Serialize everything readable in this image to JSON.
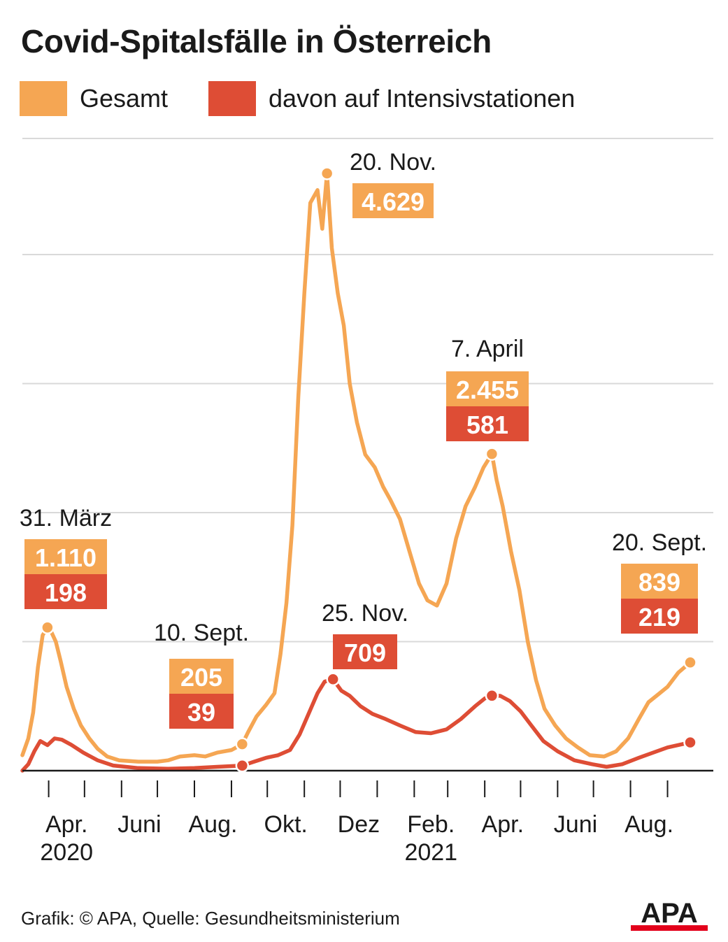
{
  "title": "Covid-Spitalsfälle in Österreich",
  "legend": [
    {
      "label": "Gesamt",
      "color": "#F5A653"
    },
    {
      "label": "davon auf Intensivstationen",
      "color": "#DE4D35"
    }
  ],
  "colors": {
    "total": "#F5A653",
    "icu": "#DE4D35",
    "grid": "#d9d9d9",
    "axis": "#1a1a1a"
  },
  "footer": "Grafik: © APA, Quelle: Gesundheitsministerium",
  "logo_text": "APA",
  "chart_data": {
    "type": "line",
    "title": "Covid-Spitalsfälle in Österreich",
    "xlabel": "",
    "ylabel": "",
    "x_axis_type": "date",
    "xlim": [
      "2020-03-10",
      "2021-09-20"
    ],
    "ylim": [
      0,
      4900
    ],
    "y_gridlines": [
      1000,
      2000,
      3000,
      4000,
      4900
    ],
    "y_tick_labels_shown": false,
    "grid": true,
    "legend_position": "top-left",
    "x_month_ticks": [
      "2020-04-01",
      "2020-05-01",
      "2020-06-01",
      "2020-07-01",
      "2020-08-01",
      "2020-09-01",
      "2020-10-01",
      "2020-11-01",
      "2020-12-01",
      "2021-01-01",
      "2021-02-01",
      "2021-03-01",
      "2021-04-01",
      "2021-05-01",
      "2021-06-01",
      "2021-07-01",
      "2021-08-01",
      "2021-09-01"
    ],
    "x_tick_labels": [
      {
        "label": "Apr.",
        "year": "2020",
        "month_start": "2020-04-01"
      },
      {
        "label": "Juni",
        "year": "",
        "month_start": "2020-06-01"
      },
      {
        "label": "Aug.",
        "year": "",
        "month_start": "2020-08-01"
      },
      {
        "label": "Okt.",
        "year": "",
        "month_start": "2020-10-01"
      },
      {
        "label": "Dez",
        "year": "",
        "month_start": "2020-12-01"
      },
      {
        "label": "Feb.",
        "year": "2021",
        "month_start": "2021-02-01"
      },
      {
        "label": "Apr.",
        "year": "",
        "month_start": "2021-04-01"
      },
      {
        "label": "Juni",
        "year": "",
        "month_start": "2021-06-01"
      },
      {
        "label": "Aug.",
        "year": "",
        "month_start": "2021-08-01"
      }
    ],
    "series": [
      {
        "name": "Gesamt",
        "color": "#F5A653",
        "points": [
          [
            "2020-03-10",
            120
          ],
          [
            "2020-03-15",
            250
          ],
          [
            "2020-03-19",
            450
          ],
          [
            "2020-03-23",
            800
          ],
          [
            "2020-03-27",
            1050
          ],
          [
            "2020-03-31",
            1110
          ],
          [
            "2020-04-03",
            1080
          ],
          [
            "2020-04-07",
            1000
          ],
          [
            "2020-04-11",
            850
          ],
          [
            "2020-04-16",
            650
          ],
          [
            "2020-04-22",
            480
          ],
          [
            "2020-04-28",
            350
          ],
          [
            "2020-05-05",
            250
          ],
          [
            "2020-05-12",
            170
          ],
          [
            "2020-05-20",
            110
          ],
          [
            "2020-05-30",
            80
          ],
          [
            "2020-06-15",
            70
          ],
          [
            "2020-07-01",
            70
          ],
          [
            "2020-07-10",
            80
          ],
          [
            "2020-07-20",
            110
          ],
          [
            "2020-08-01",
            120
          ],
          [
            "2020-08-10",
            110
          ],
          [
            "2020-08-20",
            140
          ],
          [
            "2020-09-01",
            160
          ],
          [
            "2020-09-10",
            205
          ],
          [
            "2020-09-15",
            300
          ],
          [
            "2020-09-22",
            420
          ],
          [
            "2020-09-30",
            510
          ],
          [
            "2020-10-07",
            600
          ],
          [
            "2020-10-12",
            900
          ],
          [
            "2020-10-17",
            1300
          ],
          [
            "2020-10-22",
            1900
          ],
          [
            "2020-10-27",
            2900
          ],
          [
            "2020-11-01",
            3700
          ],
          [
            "2020-11-06",
            4400
          ],
          [
            "2020-11-12",
            4500
          ],
          [
            "2020-11-16",
            4200
          ],
          [
            "2020-11-20",
            4629
          ],
          [
            "2020-11-24",
            4050
          ],
          [
            "2020-11-29",
            3700
          ],
          [
            "2020-12-04",
            3450
          ],
          [
            "2020-12-09",
            3000
          ],
          [
            "2020-12-15",
            2700
          ],
          [
            "2020-12-22",
            2450
          ],
          [
            "2020-12-30",
            2350
          ],
          [
            "2021-01-06",
            2200
          ],
          [
            "2021-01-12",
            2100
          ],
          [
            "2021-01-20",
            1950
          ],
          [
            "2021-01-28",
            1700
          ],
          [
            "2021-02-05",
            1450
          ],
          [
            "2021-02-12",
            1320
          ],
          [
            "2021-02-20",
            1280
          ],
          [
            "2021-02-28",
            1450
          ],
          [
            "2021-03-08",
            1800
          ],
          [
            "2021-03-16",
            2050
          ],
          [
            "2021-03-24",
            2200
          ],
          [
            "2021-03-31",
            2350
          ],
          [
            "2021-04-07",
            2455
          ],
          [
            "2021-04-11",
            2250
          ],
          [
            "2021-04-16",
            2050
          ],
          [
            "2021-04-23",
            1700
          ],
          [
            "2021-04-30",
            1400
          ],
          [
            "2021-05-07",
            1000
          ],
          [
            "2021-05-14",
            700
          ],
          [
            "2021-05-21",
            480
          ],
          [
            "2021-05-30",
            350
          ],
          [
            "2021-06-08",
            250
          ],
          [
            "2021-06-18",
            180
          ],
          [
            "2021-06-28",
            120
          ],
          [
            "2021-07-10",
            110
          ],
          [
            "2021-07-20",
            150
          ],
          [
            "2021-07-30",
            250
          ],
          [
            "2021-08-08",
            400
          ],
          [
            "2021-08-16",
            530
          ],
          [
            "2021-08-24",
            590
          ],
          [
            "2021-09-01",
            650
          ],
          [
            "2021-09-10",
            760
          ],
          [
            "2021-09-20",
            839
          ]
        ]
      },
      {
        "name": "davon auf Intensivstationen",
        "color": "#DE4D35",
        "points": [
          [
            "2020-03-10",
            0
          ],
          [
            "2020-03-15",
            50
          ],
          [
            "2020-03-20",
            150
          ],
          [
            "2020-03-25",
            230
          ],
          [
            "2020-03-31",
            198
          ],
          [
            "2020-04-06",
            250
          ],
          [
            "2020-04-12",
            240
          ],
          [
            "2020-04-20",
            200
          ],
          [
            "2020-04-30",
            140
          ],
          [
            "2020-05-12",
            80
          ],
          [
            "2020-05-25",
            40
          ],
          [
            "2020-06-15",
            20
          ],
          [
            "2020-07-10",
            15
          ],
          [
            "2020-08-01",
            20
          ],
          [
            "2020-08-20",
            30
          ],
          [
            "2020-09-10",
            39
          ],
          [
            "2020-09-20",
            70
          ],
          [
            "2020-09-30",
            100
          ],
          [
            "2020-10-10",
            120
          ],
          [
            "2020-10-20",
            160
          ],
          [
            "2020-10-28",
            280
          ],
          [
            "2020-11-05",
            450
          ],
          [
            "2020-11-12",
            600
          ],
          [
            "2020-11-18",
            690
          ],
          [
            "2020-11-25",
            709
          ],
          [
            "2020-12-02",
            620
          ],
          [
            "2020-12-09",
            580
          ],
          [
            "2020-12-18",
            500
          ],
          [
            "2020-12-28",
            440
          ],
          [
            "2021-01-08",
            400
          ],
          [
            "2021-01-20",
            350
          ],
          [
            "2021-02-02",
            300
          ],
          [
            "2021-02-15",
            290
          ],
          [
            "2021-02-28",
            320
          ],
          [
            "2021-03-12",
            400
          ],
          [
            "2021-03-24",
            500
          ],
          [
            "2021-04-01",
            560
          ],
          [
            "2021-04-07",
            581
          ],
          [
            "2021-04-14",
            580
          ],
          [
            "2021-04-22",
            540
          ],
          [
            "2021-05-01",
            460
          ],
          [
            "2021-05-10",
            350
          ],
          [
            "2021-05-20",
            230
          ],
          [
            "2021-06-01",
            150
          ],
          [
            "2021-06-15",
            80
          ],
          [
            "2021-06-30",
            50
          ],
          [
            "2021-07-12",
            30
          ],
          [
            "2021-07-25",
            50
          ],
          [
            "2021-08-08",
            100
          ],
          [
            "2021-08-20",
            140
          ],
          [
            "2021-09-01",
            180
          ],
          [
            "2021-09-20",
            219
          ]
        ]
      }
    ],
    "annotations": [
      {
        "date_label": "31. März",
        "date": "2020-03-31",
        "total": "1.110",
        "icu": "198"
      },
      {
        "date_label": "10. Sept.",
        "date": "2020-09-10",
        "total": "205",
        "icu": "39"
      },
      {
        "date_label": "20. Nov.",
        "date": "2020-11-20",
        "total": "4.629"
      },
      {
        "date_label": "25. Nov.",
        "date": "2020-11-25",
        "icu": "709"
      },
      {
        "date_label": "7. April",
        "date": "2021-04-07",
        "total": "2.455",
        "icu": "581"
      },
      {
        "date_label": "20. Sept.",
        "date": "2021-09-20",
        "total": "839",
        "icu": "219"
      }
    ],
    "markers": [
      {
        "series": "Gesamt",
        "date": "2020-03-31",
        "value": 1110
      },
      {
        "series": "davon auf Intensivstationen",
        "date": "2020-09-10",
        "value": 39
      },
      {
        "series": "Gesamt",
        "date": "2020-09-10",
        "value": 205
      },
      {
        "series": "Gesamt",
        "date": "2020-11-20",
        "value": 4629
      },
      {
        "series": "davon auf Intensivstationen",
        "date": "2020-11-25",
        "value": 709
      },
      {
        "series": "Gesamt",
        "date": "2021-04-07",
        "value": 2455
      },
      {
        "series": "davon auf Intensivstationen",
        "date": "2021-04-07",
        "value": 581
      },
      {
        "series": "Gesamt",
        "date": "2021-09-20",
        "value": 839
      },
      {
        "series": "davon auf Intensivstationen",
        "date": "2021-09-20",
        "value": 219
      }
    ]
  }
}
